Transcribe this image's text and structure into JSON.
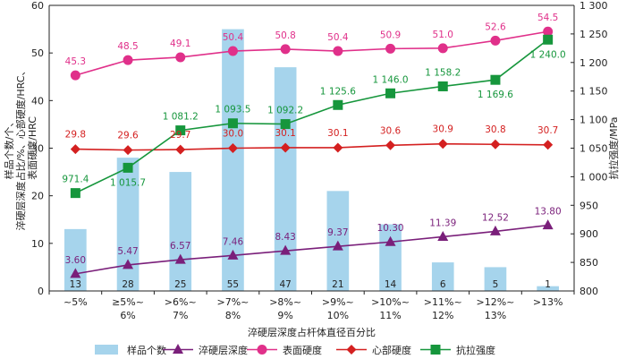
{
  "chart_data": {
    "type": "bar",
    "title": "",
    "xlabel": "淬硬层深度占杆体直径百分比",
    "ylabel_left": "样品个数/个、淬硬层深度占比/%、心部硬度/HRC、表面硬度/HRC",
    "ylabel_left_lines": [
      "样品个数/个、",
      "淬硬层深度占比/%、心部硬度/HRC、",
      "表面硬度/HRC"
    ],
    "ylabel_right": "抗拉强度/MPa",
    "categories": [
      "~5%",
      "≥5%~6%",
      ">6%~7%",
      ">7%~8%",
      ">8%~9%",
      ">9%~10%",
      ">10%~11%",
      ">11%~12%",
      ">12%~13%",
      ">13%"
    ],
    "category_lines": [
      [
        "~5%"
      ],
      [
        "≥5%~",
        "6%"
      ],
      [
        ">6%~",
        "7%"
      ],
      [
        ">7%~",
        "8%"
      ],
      [
        ">8%~",
        "9%"
      ],
      [
        ">9%~",
        "10%"
      ],
      [
        ">10%~",
        "11%"
      ],
      [
        ">11%~",
        "12%"
      ],
      [
        ">12%~",
        "13%"
      ],
      [
        ">13%"
      ]
    ],
    "ylim_left": [
      0,
      60
    ],
    "yticks_left": [
      0,
      10,
      20,
      30,
      40,
      50,
      60
    ],
    "ylim_right": [
      800,
      1300
    ],
    "yticks_right": [
      "800",
      "850",
      "900",
      "950",
      "1 000",
      "1 050",
      "1 100",
      "1 150",
      "1 200",
      "1 250",
      "1 300"
    ],
    "grid": false,
    "legend_position": "bottom",
    "series": [
      {
        "name": "样品个数",
        "type": "bar",
        "axis": "left",
        "color": "#a6d4ec",
        "values": [
          13,
          28,
          25,
          55,
          47,
          21,
          14,
          6,
          5,
          1
        ],
        "labels": [
          "13",
          "28",
          "25",
          "55",
          "47",
          "21",
          "14",
          "6",
          "5",
          "1"
        ],
        "label_color": "#222222"
      },
      {
        "name": "淬硬层深度",
        "type": "line",
        "marker": "triangle",
        "axis": "left",
        "color": "#7a1f7a",
        "values": [
          3.6,
          5.47,
          6.57,
          7.46,
          8.43,
          9.37,
          10.3,
          11.39,
          12.52,
          13.8
        ],
        "labels": [
          "3.60",
          "5.47",
          "6.57",
          "7.46",
          "8.43",
          "9.37",
          "10.30",
          "11.39",
          "12.52",
          "13.80"
        ]
      },
      {
        "name": "表面硬度",
        "type": "line",
        "marker": "circle",
        "axis": "left",
        "color": "#e0308a",
        "values": [
          45.3,
          48.5,
          49.1,
          50.4,
          50.8,
          50.4,
          50.9,
          51.0,
          52.6,
          54.5
        ],
        "labels": [
          "45.3",
          "48.5",
          "49.1",
          "50.4",
          "50.8",
          "50.4",
          "50.9",
          "51.0",
          "52.6",
          "54.5"
        ]
      },
      {
        "name": "心部硬度",
        "type": "line",
        "marker": "diamond",
        "axis": "left",
        "color": "#d42020",
        "values": [
          29.8,
          29.6,
          29.7,
          30.0,
          30.1,
          30.1,
          30.6,
          30.9,
          30.8,
          30.7
        ],
        "labels": [
          "29.8",
          "29.6",
          "29.7",
          "30.0",
          "30.1",
          "30.1",
          "30.6",
          "30.9",
          "30.8",
          "30.7"
        ]
      },
      {
        "name": "抗拉强度",
        "type": "line",
        "marker": "square",
        "axis": "right",
        "color": "#16963c",
        "values": [
          971.4,
          1015.7,
          1081.2,
          1093.5,
          1092.2,
          1125.6,
          1146.0,
          1158.2,
          1169.6,
          1240.0
        ],
        "labels": [
          "971.4",
          "1 015.7",
          "1 081.2",
          "1 093.5",
          "1 092.2",
          "1 125.6",
          "1 146.0",
          "1 158.2",
          "1 169.6",
          "1 240.0"
        ]
      }
    ]
  }
}
